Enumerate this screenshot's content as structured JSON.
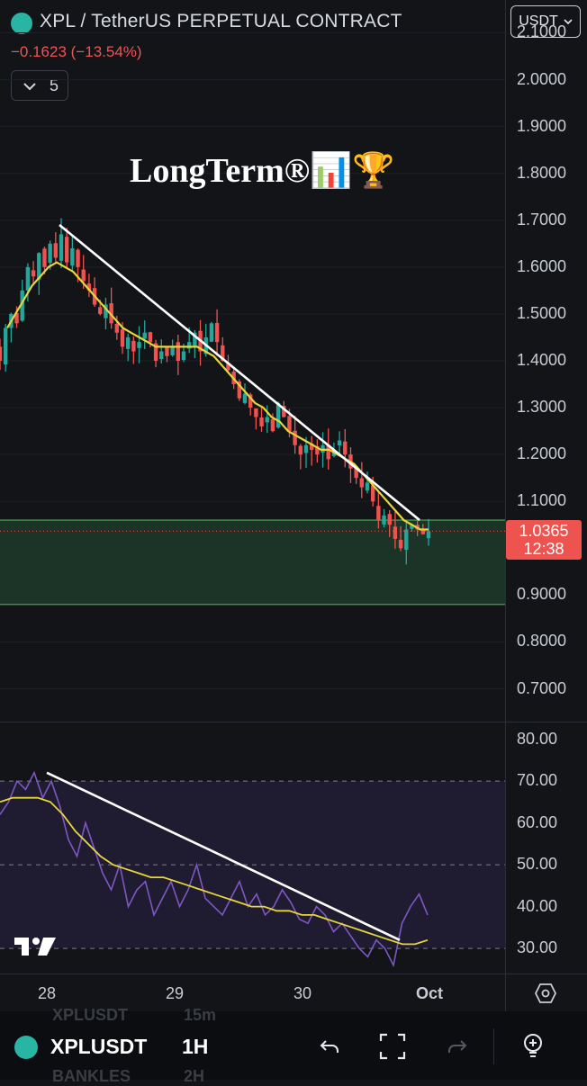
{
  "header": {
    "title": "XPL / TetherUS PERPETUAL CONTRACT",
    "change": "−0.1623 (−13.54%)",
    "indicators_count": "5",
    "currency": "USDT"
  },
  "watermark": "LongTerm®📊🏆",
  "price_axis": [
    "2.1000",
    "2.0000",
    "1.9000",
    "1.8000",
    "1.7000",
    "1.6000",
    "1.5000",
    "1.4000",
    "1.3000",
    "1.2000",
    "1.1000",
    "0.9000",
    "0.8000",
    "0.7000"
  ],
  "last_price": {
    "value": "1.0365",
    "countdown": "12:38"
  },
  "rsi_axis": [
    "80.00",
    "70.00",
    "60.00",
    "50.00",
    "40.00",
    "30.00"
  ],
  "time_axis": [
    "28",
    "29",
    "30",
    "Oct"
  ],
  "bottom_bar": {
    "ticker": "XPLUSDT",
    "interval": "1H",
    "ghost_ticker_top": "XPLUSDT",
    "ghost_interval_top": "15m",
    "ghost_ticker_bottom": "BANKLES",
    "ghost_interval_bottom": "2H"
  },
  "colors": {
    "up": "#26a69a",
    "down": "#ef5350",
    "ma": "#e6d63a",
    "rsi": "#7e57c2",
    "zone": "#1e3a2a",
    "zone_border": "#4caf50"
  },
  "chart_data": {
    "type": "candlestick",
    "y_range": [
      0.63,
      2.17
    ],
    "x_ticks": [
      "28",
      "29",
      "30",
      "Oct"
    ],
    "last_price": 1.0365,
    "support_zone": [
      0.88,
      1.06
    ],
    "trendline": [
      [
        1.69,
        1.06
      ]
    ],
    "close_series": [
      1.4,
      1.47,
      1.5,
      1.48,
      1.55,
      1.6,
      1.58,
      1.63,
      1.6,
      1.65,
      1.62,
      1.67,
      1.61,
      1.64,
      1.6,
      1.57,
      1.55,
      1.52,
      1.5,
      1.52,
      1.48,
      1.46,
      1.43,
      1.45,
      1.42,
      1.44,
      1.46,
      1.44,
      1.4,
      1.42,
      1.41,
      1.43,
      1.4,
      1.42,
      1.44,
      1.46,
      1.42,
      1.45,
      1.48,
      1.44,
      1.4,
      1.38,
      1.35,
      1.32,
      1.33,
      1.3,
      1.28,
      1.26,
      1.28,
      1.25,
      1.31,
      1.28,
      1.25,
      1.22,
      1.2,
      1.22,
      1.21,
      1.2,
      1.22,
      1.19,
      1.21,
      1.23,
      1.2,
      1.17,
      1.15,
      1.13,
      1.14,
      1.1,
      1.06,
      1.07,
      1.05,
      1.02,
      1.0,
      1.04,
      1.05,
      1.04,
      1.03,
      1.0365
    ],
    "ma_series": [
      1.47,
      1.5,
      1.53,
      1.56,
      1.58,
      1.6,
      1.61,
      1.6,
      1.59,
      1.57,
      1.55,
      1.53,
      1.51,
      1.49,
      1.47,
      1.46,
      1.45,
      1.44,
      1.43,
      1.43,
      1.43,
      1.43,
      1.43,
      1.43,
      1.42,
      1.41,
      1.39,
      1.37,
      1.35,
      1.33,
      1.31,
      1.3,
      1.28,
      1.27,
      1.25,
      1.24,
      1.23,
      1.22,
      1.21,
      1.21,
      1.2,
      1.19,
      1.18,
      1.16,
      1.14,
      1.12,
      1.1,
      1.08,
      1.06,
      1.05,
      1.04,
      1.04
    ],
    "rsi": {
      "y_range": [
        24,
        84
      ],
      "overbought": 70,
      "mid": 50,
      "oversold": 30,
      "series": [
        62,
        65,
        70,
        68,
        72,
        66,
        70,
        64,
        56,
        52,
        60,
        54,
        48,
        44,
        50,
        40,
        44,
        46,
        38,
        42,
        46,
        40,
        44,
        50,
        42,
        40,
        38,
        42,
        46,
        40,
        43,
        38,
        40,
        44,
        41,
        37,
        36,
        40,
        38,
        34,
        36,
        33,
        30,
        28,
        32,
        30,
        26,
        36,
        40,
        43,
        38
      ],
      "ma": [
        65,
        66,
        66,
        66,
        65,
        62,
        58,
        55,
        52,
        50,
        49,
        48,
        47,
        47,
        46,
        45,
        44,
        43,
        42,
        41,
        40,
        40,
        39,
        39,
        38,
        38,
        37,
        36,
        35,
        34,
        33,
        32,
        31,
        31,
        32
      ],
      "trendline": [
        [
          72,
          32
        ]
      ]
    }
  }
}
